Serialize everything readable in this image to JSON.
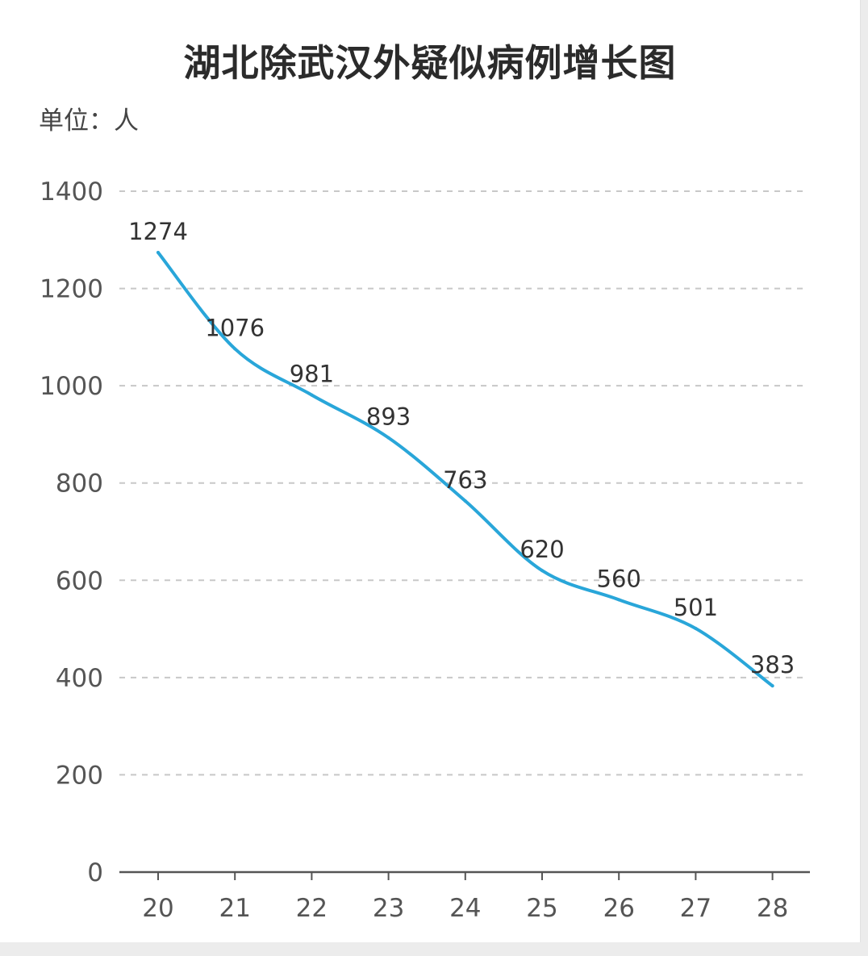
{
  "title": "湖北除武汉外疑似病例增长图",
  "unit": "单位：人",
  "colors": {
    "line": "#29a6d9",
    "grid": "#c8c8c8",
    "axis": "#555555"
  },
  "chart_data": {
    "type": "line",
    "title": "湖北除武汉外疑似病例增长图",
    "ylabel": "单位：人",
    "xlabel": "",
    "categories": [
      "20",
      "21",
      "22",
      "23",
      "24",
      "25",
      "26",
      "27",
      "28"
    ],
    "values": [
      1274,
      1076,
      981,
      893,
      763,
      620,
      560,
      501,
      383
    ],
    "data_labels": [
      "1274",
      "1076",
      "981",
      "893",
      "763",
      "620",
      "560",
      "501",
      "383"
    ],
    "ylim": [
      0,
      1400
    ],
    "yticks": [
      0,
      200,
      400,
      600,
      800,
      1000,
      1200,
      1400
    ],
    "ytick_labels": [
      "0",
      "200",
      "400",
      "600",
      "800",
      "1000",
      "1200",
      "1400"
    ],
    "grid": "horizontal-dashed",
    "smooth": true,
    "legend": "none"
  }
}
